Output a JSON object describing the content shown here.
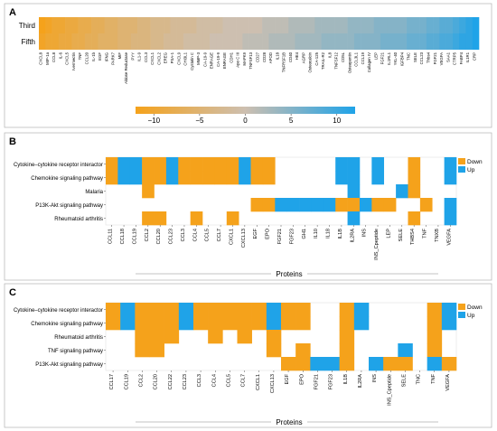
{
  "colors": {
    "down": "#F5A21B",
    "up": "#1FA3E8",
    "neutral": "#CDBFB0",
    "border": "#444444",
    "grid": "#dddddd"
  },
  "chart_data": [
    {
      "panel": "A",
      "type": "heatmap",
      "rows": [
        "Third",
        "Fifth"
      ],
      "colorbar": {
        "ticks": [
          -10,
          -5,
          0,
          5,
          10
        ],
        "range": [
          -12,
          12
        ]
      },
      "columns": [
        "CXCL8",
        "MIP-1a",
        "CCL8",
        "IL-6",
        "CXCL5",
        "Ivermectin",
        "TNF",
        "CCL20",
        "IL-1b",
        "EGF",
        "IFNG",
        "PARK7",
        "MIF",
        "Aldose Reductase",
        "PYY",
        "IL1-9",
        "CCL3",
        "CXCL1",
        "CXCL2",
        "EREG",
        "PSA-1",
        "CXCL9",
        "CHI3L1",
        "Cystatin C",
        "MMP-3",
        "CA-19-9",
        "ENRAGE",
        "CA-19-9",
        "ENRAGE",
        "CDH1",
        "Apo C III",
        "MAPK9",
        "TNFSF13",
        "CD27",
        "CD28",
        "APOD",
        "IL18",
        "TNFRSF1B",
        "CD40",
        "HE4",
        "AGRP",
        "Osteocalcin",
        "CA-125",
        "TRAIL-R2",
        "IL8",
        "TNFSF12",
        "CD5L",
        "Osteopontin",
        "CCL3L1",
        "CCL19",
        "Collagen IV",
        "LEP",
        "FGF21",
        "IL1RL1",
        "YKL-40",
        "IGFBP4",
        "TNC",
        "SELE",
        "CCL23",
        "Thbs4",
        "FGF21",
        "VEGFA",
        "SAA1",
        "CTRP5",
        "FABP4",
        "IL1R1",
        "CRP"
      ],
      "values": {
        "Third": [
          -12,
          -11,
          -10,
          -10,
          -9,
          -9,
          -8,
          -8,
          -7,
          -7,
          -6,
          -6,
          -5,
          -5,
          -5,
          -4,
          -4,
          -3,
          -3,
          -3,
          -2,
          -2,
          -2,
          -2,
          -1,
          -1,
          -1,
          -1,
          0,
          0,
          0,
          0,
          0,
          0,
          1,
          1,
          1,
          1,
          2,
          2,
          2,
          2,
          3,
          3,
          3,
          3,
          3,
          4,
          4,
          4,
          4,
          5,
          5,
          5,
          5,
          5,
          6,
          6,
          6,
          7,
          7,
          8,
          8,
          9,
          10,
          11,
          12
        ],
        "Fifth": [
          -11,
          -10,
          -10,
          -9,
          -9,
          -8,
          -8,
          -7,
          -7,
          -6,
          -6,
          -6,
          -5,
          -5,
          -4,
          -4,
          -4,
          -3,
          -3,
          -2,
          -2,
          -2,
          -1,
          -1,
          -1,
          -1,
          0,
          0,
          0,
          0,
          0,
          1,
          1,
          1,
          1,
          2,
          2,
          2,
          2,
          3,
          3,
          3,
          3,
          4,
          4,
          4,
          4,
          4,
          5,
          5,
          5,
          5,
          6,
          6,
          6,
          6,
          7,
          7,
          7,
          8,
          8,
          9,
          9,
          10,
          11,
          11,
          12
        ]
      }
    },
    {
      "panel": "B",
      "type": "heatmap",
      "xlabel": "Proteins",
      "legend": [
        "Down",
        "Up"
      ],
      "legend_position": "top-right",
      "rows": [
        "Cytokine–cytokine receptor interactor",
        "Chemokine signaling pathway",
        "Malaria",
        "P13K-Akt signaling pathway",
        "Rheumatoid arthritis"
      ],
      "columns": [
        "CCL11",
        "CCL18",
        "CCL19",
        "CCL2",
        "CCL20",
        "CCL23",
        "CCL3",
        "CCL4",
        "CCL5",
        "CCL7",
        "CXCL1",
        "CXCL13",
        "EGF",
        "EPO",
        "FGF21",
        "FGF23",
        "GH1",
        "IL10",
        "IL18",
        "IL1B",
        "IL2RA",
        "INS",
        "INS_Cpeptide",
        "LEP",
        "SELE",
        "THBS4",
        "TNF",
        "TNXB",
        "VEGFA"
      ],
      "cells": [
        "DUUDDUDDDDDUDD.....UU.U..D..U",
        "DUUDDUDDDDDUDD.....UU.U..D..U",
        "...D................U...UD...",
        "............DDUUUUUDDUDD..D.U",
        "...DD..D..D.........U....D..U"
      ]
    },
    {
      "panel": "C",
      "type": "heatmap",
      "xlabel": "Proteins",
      "legend": [
        "Down",
        "Up"
      ],
      "legend_position": "top-right",
      "rows": [
        "Cytokine–cytokine receptor interactor",
        "Chemokine signaling pathway",
        "Rheumatoid arthritis",
        "TNF signaling pathway",
        "P13K-Akt signaling pathway"
      ],
      "columns": [
        "CCL17",
        "CCL19",
        "CCL2",
        "CCL20",
        "CCL22",
        "CCL23",
        "CCL3",
        "CCL4",
        "CCL5",
        "CCL7",
        "CXCL1",
        "CXCL13",
        "EGF",
        "EPO",
        "FGF21",
        "FGF23",
        "IL1B",
        "IL2RA",
        "INS",
        "INS_Cpeptide",
        "SELE",
        "TNC",
        "TNF",
        "VEGFA"
      ],
      "cells": [
        "DUDDDUDDDDDUDD..DU....DU",
        "DUDDDUDDDDDUDD..DU....DU",
        "..DDD..D.D.D....D.....D.",
        "..DD.......D.D..D...U.D.",
        "............DDUUD.UDD.UD"
      ]
    }
  ]
}
